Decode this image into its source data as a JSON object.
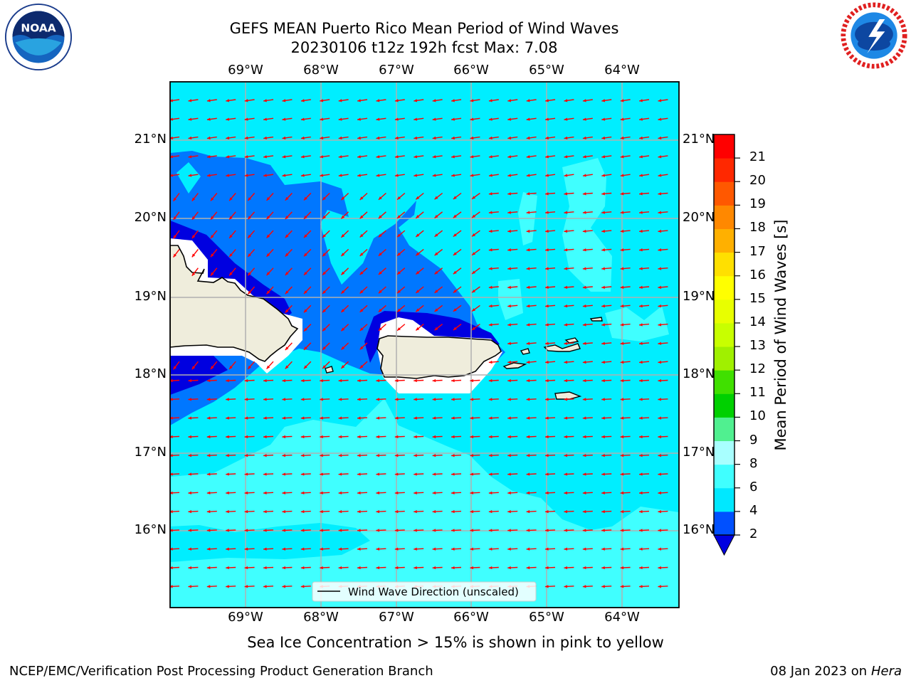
{
  "title": {
    "line1": "GEFS MEAN Puerto Rico Mean Period of Wind Waves",
    "line2": "20230106 t12z 192h fcst   Max: 7.08"
  },
  "logos": {
    "left": "noaa-logo",
    "right": "nws-logo"
  },
  "map": {
    "lon_labels": [
      "69°W",
      "68°W",
      "67°W",
      "66°W",
      "65°W",
      "64°W"
    ],
    "lat_labels": [
      "21°N",
      "20°N",
      "19°N",
      "18°N",
      "17°N",
      "16°N"
    ],
    "lon_range": [
      "70°W",
      "63.25°W"
    ],
    "lat_range": [
      "15°N",
      "21.75°N"
    ],
    "gridlines": true,
    "legend": "Wind Wave Direction (unscaled)",
    "legend_placement": "bottom-center",
    "arrow_color": "#ff0000",
    "land_color": "#efeddc"
  },
  "colorbar": {
    "label": "Mean Period of Wind Waves [s]",
    "ticks": [
      "2",
      "4",
      "6",
      "8",
      "9",
      "10",
      "11",
      "12",
      "13",
      "14",
      "15",
      "16",
      "17",
      "18",
      "19",
      "20",
      "21"
    ],
    "colors": [
      "#0050ff",
      "#00e8ff",
      "#40ffff",
      "#a8ffff",
      "#50f090",
      "#00d000",
      "#40e000",
      "#a0f000",
      "#c8ff00",
      "#e8ff00",
      "#ffff00",
      "#ffe000",
      "#ffb000",
      "#ff8800",
      "#ff5800",
      "#ff2800",
      "#ff0000"
    ],
    "under_color": "#0000e0"
  },
  "footer": {
    "note": "Sea Ice Concentration > 15% is shown in pink to yellow",
    "left": "NCEP/EMC/Verification Post Processing Product Generation Branch",
    "right_date": "08 Jan 2023 on ",
    "right_host": "Hera"
  }
}
